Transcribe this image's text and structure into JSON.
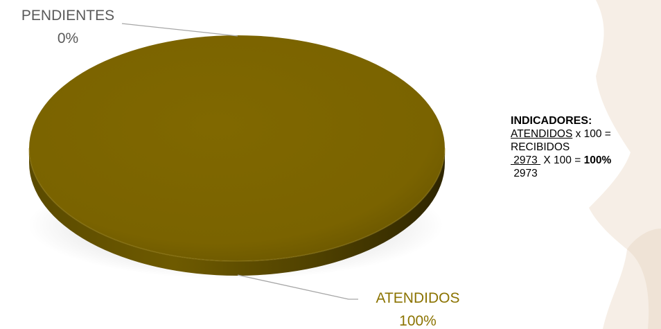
{
  "chart_data": {
    "type": "pie",
    "slices": [
      {
        "label": "PENDIENTES",
        "value": 0,
        "value_label": "0%",
        "color": "#7A6300"
      },
      {
        "label": "ATENDIDOS",
        "value": 100,
        "value_label": "100%",
        "color": "#7A6300"
      }
    ],
    "label_colors": {
      "PENDIENTES": "#595959",
      "ATENDIDOS": "#8B7300"
    },
    "style": "3d",
    "legend": "none"
  },
  "indicators": {
    "title": "INDICADORES:",
    "numerator_label": "ATENDIDOS",
    "times_equals": " x 100 =",
    "denominator_label": "RECIBIDOS",
    "numerator_value": " 2973 ",
    "times_equals_2": " X 100 = ",
    "result": "100%",
    "denominator_value": "2973"
  },
  "colors": {
    "pie_top": "#7A6300",
    "pie_side_dark": "#3A2F00",
    "leader_line": "#A6A6A6",
    "decoration": "#F6EEE6"
  }
}
